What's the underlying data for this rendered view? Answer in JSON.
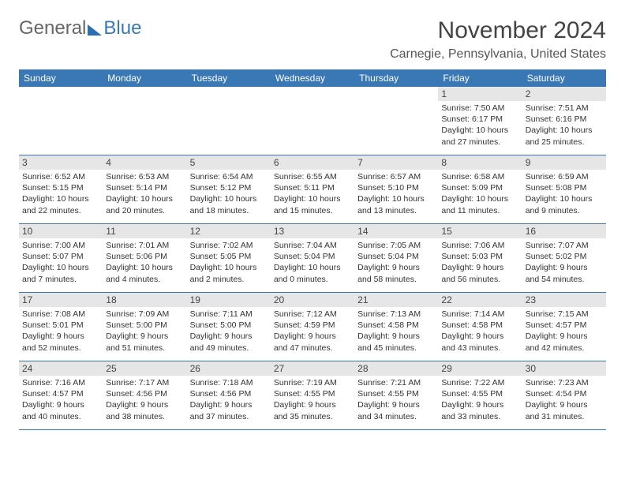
{
  "logo": {
    "word1": "General",
    "word2": "Blue"
  },
  "title": "November 2024",
  "location": "Carnegie, Pennsylvania, United States",
  "colors": {
    "header_bg": "#3a78b5",
    "header_text": "#ffffff",
    "daynum_bg": "#e6e6e6",
    "border": "#3a78b5",
    "page_bg": "#ffffff",
    "text": "#333333"
  },
  "daysOfWeek": [
    "Sunday",
    "Monday",
    "Tuesday",
    "Wednesday",
    "Thursday",
    "Friday",
    "Saturday"
  ],
  "weeks": [
    [
      {
        "num": "",
        "sunrise": "",
        "sunset": "",
        "daylight1": "",
        "daylight2": ""
      },
      {
        "num": "",
        "sunrise": "",
        "sunset": "",
        "daylight1": "",
        "daylight2": ""
      },
      {
        "num": "",
        "sunrise": "",
        "sunset": "",
        "daylight1": "",
        "daylight2": ""
      },
      {
        "num": "",
        "sunrise": "",
        "sunset": "",
        "daylight1": "",
        "daylight2": ""
      },
      {
        "num": "",
        "sunrise": "",
        "sunset": "",
        "daylight1": "",
        "daylight2": ""
      },
      {
        "num": "1",
        "sunrise": "Sunrise: 7:50 AM",
        "sunset": "Sunset: 6:17 PM",
        "daylight1": "Daylight: 10 hours",
        "daylight2": "and 27 minutes."
      },
      {
        "num": "2",
        "sunrise": "Sunrise: 7:51 AM",
        "sunset": "Sunset: 6:16 PM",
        "daylight1": "Daylight: 10 hours",
        "daylight2": "and 25 minutes."
      }
    ],
    [
      {
        "num": "3",
        "sunrise": "Sunrise: 6:52 AM",
        "sunset": "Sunset: 5:15 PM",
        "daylight1": "Daylight: 10 hours",
        "daylight2": "and 22 minutes."
      },
      {
        "num": "4",
        "sunrise": "Sunrise: 6:53 AM",
        "sunset": "Sunset: 5:14 PM",
        "daylight1": "Daylight: 10 hours",
        "daylight2": "and 20 minutes."
      },
      {
        "num": "5",
        "sunrise": "Sunrise: 6:54 AM",
        "sunset": "Sunset: 5:12 PM",
        "daylight1": "Daylight: 10 hours",
        "daylight2": "and 18 minutes."
      },
      {
        "num": "6",
        "sunrise": "Sunrise: 6:55 AM",
        "sunset": "Sunset: 5:11 PM",
        "daylight1": "Daylight: 10 hours",
        "daylight2": "and 15 minutes."
      },
      {
        "num": "7",
        "sunrise": "Sunrise: 6:57 AM",
        "sunset": "Sunset: 5:10 PM",
        "daylight1": "Daylight: 10 hours",
        "daylight2": "and 13 minutes."
      },
      {
        "num": "8",
        "sunrise": "Sunrise: 6:58 AM",
        "sunset": "Sunset: 5:09 PM",
        "daylight1": "Daylight: 10 hours",
        "daylight2": "and 11 minutes."
      },
      {
        "num": "9",
        "sunrise": "Sunrise: 6:59 AM",
        "sunset": "Sunset: 5:08 PM",
        "daylight1": "Daylight: 10 hours",
        "daylight2": "and 9 minutes."
      }
    ],
    [
      {
        "num": "10",
        "sunrise": "Sunrise: 7:00 AM",
        "sunset": "Sunset: 5:07 PM",
        "daylight1": "Daylight: 10 hours",
        "daylight2": "and 7 minutes."
      },
      {
        "num": "11",
        "sunrise": "Sunrise: 7:01 AM",
        "sunset": "Sunset: 5:06 PM",
        "daylight1": "Daylight: 10 hours",
        "daylight2": "and 4 minutes."
      },
      {
        "num": "12",
        "sunrise": "Sunrise: 7:02 AM",
        "sunset": "Sunset: 5:05 PM",
        "daylight1": "Daylight: 10 hours",
        "daylight2": "and 2 minutes."
      },
      {
        "num": "13",
        "sunrise": "Sunrise: 7:04 AM",
        "sunset": "Sunset: 5:04 PM",
        "daylight1": "Daylight: 10 hours",
        "daylight2": "and 0 minutes."
      },
      {
        "num": "14",
        "sunrise": "Sunrise: 7:05 AM",
        "sunset": "Sunset: 5:04 PM",
        "daylight1": "Daylight: 9 hours",
        "daylight2": "and 58 minutes."
      },
      {
        "num": "15",
        "sunrise": "Sunrise: 7:06 AM",
        "sunset": "Sunset: 5:03 PM",
        "daylight1": "Daylight: 9 hours",
        "daylight2": "and 56 minutes."
      },
      {
        "num": "16",
        "sunrise": "Sunrise: 7:07 AM",
        "sunset": "Sunset: 5:02 PM",
        "daylight1": "Daylight: 9 hours",
        "daylight2": "and 54 minutes."
      }
    ],
    [
      {
        "num": "17",
        "sunrise": "Sunrise: 7:08 AM",
        "sunset": "Sunset: 5:01 PM",
        "daylight1": "Daylight: 9 hours",
        "daylight2": "and 52 minutes."
      },
      {
        "num": "18",
        "sunrise": "Sunrise: 7:09 AM",
        "sunset": "Sunset: 5:00 PM",
        "daylight1": "Daylight: 9 hours",
        "daylight2": "and 51 minutes."
      },
      {
        "num": "19",
        "sunrise": "Sunrise: 7:11 AM",
        "sunset": "Sunset: 5:00 PM",
        "daylight1": "Daylight: 9 hours",
        "daylight2": "and 49 minutes."
      },
      {
        "num": "20",
        "sunrise": "Sunrise: 7:12 AM",
        "sunset": "Sunset: 4:59 PM",
        "daylight1": "Daylight: 9 hours",
        "daylight2": "and 47 minutes."
      },
      {
        "num": "21",
        "sunrise": "Sunrise: 7:13 AM",
        "sunset": "Sunset: 4:58 PM",
        "daylight1": "Daylight: 9 hours",
        "daylight2": "and 45 minutes."
      },
      {
        "num": "22",
        "sunrise": "Sunrise: 7:14 AM",
        "sunset": "Sunset: 4:58 PM",
        "daylight1": "Daylight: 9 hours",
        "daylight2": "and 43 minutes."
      },
      {
        "num": "23",
        "sunrise": "Sunrise: 7:15 AM",
        "sunset": "Sunset: 4:57 PM",
        "daylight1": "Daylight: 9 hours",
        "daylight2": "and 42 minutes."
      }
    ],
    [
      {
        "num": "24",
        "sunrise": "Sunrise: 7:16 AM",
        "sunset": "Sunset: 4:57 PM",
        "daylight1": "Daylight: 9 hours",
        "daylight2": "and 40 minutes."
      },
      {
        "num": "25",
        "sunrise": "Sunrise: 7:17 AM",
        "sunset": "Sunset: 4:56 PM",
        "daylight1": "Daylight: 9 hours",
        "daylight2": "and 38 minutes."
      },
      {
        "num": "26",
        "sunrise": "Sunrise: 7:18 AM",
        "sunset": "Sunset: 4:56 PM",
        "daylight1": "Daylight: 9 hours",
        "daylight2": "and 37 minutes."
      },
      {
        "num": "27",
        "sunrise": "Sunrise: 7:19 AM",
        "sunset": "Sunset: 4:55 PM",
        "daylight1": "Daylight: 9 hours",
        "daylight2": "and 35 minutes."
      },
      {
        "num": "28",
        "sunrise": "Sunrise: 7:21 AM",
        "sunset": "Sunset: 4:55 PM",
        "daylight1": "Daylight: 9 hours",
        "daylight2": "and 34 minutes."
      },
      {
        "num": "29",
        "sunrise": "Sunrise: 7:22 AM",
        "sunset": "Sunset: 4:55 PM",
        "daylight1": "Daylight: 9 hours",
        "daylight2": "and 33 minutes."
      },
      {
        "num": "30",
        "sunrise": "Sunrise: 7:23 AM",
        "sunset": "Sunset: 4:54 PM",
        "daylight1": "Daylight: 9 hours",
        "daylight2": "and 31 minutes."
      }
    ]
  ]
}
